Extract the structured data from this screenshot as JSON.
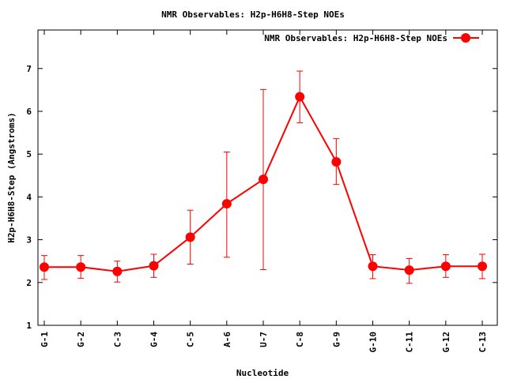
{
  "chart_data": {
    "type": "line",
    "title": "NMR Observables: H2p-H6H8-Step NOEs",
    "xlabel": "Nucleotide",
    "ylabel": "H2p-H6H8-Step (Angstroms)",
    "categories": [
      "G-1",
      "G-2",
      "C-3",
      "G-4",
      "C-5",
      "A-6",
      "U-7",
      "C-8",
      "G-9",
      "G-10",
      "C-11",
      "G-12",
      "C-13"
    ],
    "ylim": [
      1,
      7.9
    ],
    "yticks": [
      1,
      2,
      3,
      4,
      5,
      6,
      7
    ],
    "grid": false,
    "legend_position": "top-right",
    "series": [
      {
        "name": "NMR Observables: H2p-H6H8-Step NOEs",
        "color": "#ff0000",
        "values": [
          2.36,
          2.36,
          2.26,
          2.39,
          3.06,
          3.84,
          4.41,
          6.34,
          4.82,
          2.38,
          2.29,
          2.38,
          2.38
        ],
        "err_low": [
          2.07,
          2.1,
          2.01,
          2.12,
          2.43,
          2.59,
          2.3,
          5.73,
          4.29,
          2.09,
          1.98,
          2.12,
          2.09
        ],
        "err_high": [
          2.63,
          2.63,
          2.5,
          2.66,
          3.69,
          5.05,
          6.51,
          6.94,
          5.36,
          2.65,
          2.56,
          2.65,
          2.66
        ]
      }
    ]
  }
}
